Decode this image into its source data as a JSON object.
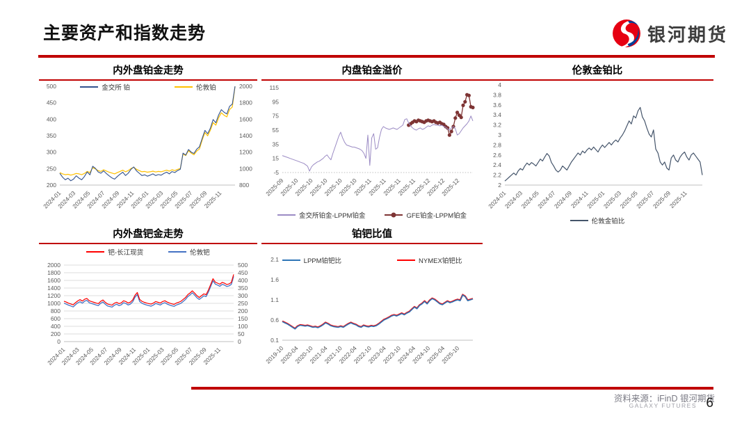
{
  "header": {
    "title": "主要资产和指数走势",
    "logo_text": "银河期货"
  },
  "footer": {
    "source": "资料来源：iFinD 银河期货",
    "source_en": "GALAXY FUTURES",
    "page_number": "6"
  },
  "colors": {
    "accent_red": "#C00000",
    "tick_label": "#595959",
    "axis_line": "#BFBFBF",
    "grid_line": "#DCDCDC",
    "sge_pt_navy": "#33538E",
    "london_pt_yellow": "#FFC000",
    "gfe_premium_maroon": "#7E3434",
    "sge_premium_purple": "#9B8BC4",
    "gold_pt_ratio_slate": "#44546A",
    "london_pd_blue": "#4472C4",
    "pd_spot_red": "#FF0000",
    "nymex_ratio_red": "#FF0000",
    "lppm_ratio_blue": "#2E75B6"
  },
  "chart_data": [
    {
      "type": "line",
      "title": "内外盘铂金走势",
      "x_labels": [
        "2024-01",
        "2024-03",
        "2024-05",
        "2024-07",
        "2024-09",
        "2024-11",
        "2025-01",
        "2025-03",
        "2025-05",
        "2025-07",
        "2025-09",
        "2025-11"
      ],
      "left_ticks": [
        "500",
        "450",
        "400",
        "350",
        "300",
        "250",
        "200"
      ],
      "left_range": [
        200,
        500
      ],
      "right_ticks": [
        "2000",
        "1800",
        "1600",
        "1400",
        "1200",
        "1000",
        "800"
      ],
      "right_range": [
        800,
        2000
      ],
      "grid": false,
      "legend_position": "inside-top",
      "series": [
        {
          "name": "伦敦铂",
          "color": "#FFC000",
          "axis": "right",
          "width": 1.2,
          "marker": false,
          "values": [
            952,
            936,
            926,
            931,
            921,
            929,
            941,
            936,
            926,
            941,
            966,
            951,
            1012,
            996,
            976,
            966,
            986,
            971,
            956,
            946,
            936,
            951,
            966,
            981,
            961,
            976,
            1001,
            1016,
            991,
            976,
            961,
            966,
            956,
            961,
            969,
            959,
            966,
            961,
            971,
            981,
            969,
            986,
            976,
            991,
            1001,
            1178,
            1158,
            1218,
            1188,
            1168,
            1213,
            1238,
            1348,
            1438,
            1398,
            1468,
            1558,
            1528,
            1618,
            1678,
            1648,
            1628,
            1718,
            1748,
            1998
          ]
        },
        {
          "name": "金交所 铂",
          "color": "#33538E",
          "axis": "left",
          "width": 1.1,
          "marker": false,
          "values": [
            236,
            224,
            216,
            221,
            213,
            218,
            228,
            221,
            216,
            226,
            240,
            231,
            257,
            251,
            240,
            236,
            243,
            235,
            228,
            222,
            218,
            226,
            233,
            239,
            229,
            236,
            248,
            255,
            243,
            236,
            229,
            231,
            227,
            230,
            234,
            229,
            232,
            230,
            235,
            239,
            234,
            241,
            238,
            244,
            248,
            297,
            291,
            308,
            300,
            296,
            309,
            316,
            342,
            366,
            356,
            373,
            399,
            389,
            413,
            429,
            421,
            416,
            439,
            446,
            500
          ]
        }
      ]
    },
    {
      "type": "line",
      "title": "内盘铂金溢价",
      "x_labels": [
        "2025-09",
        "2025-10",
        "2025-10",
        "2025-10",
        "2025-10",
        "2025-10",
        "2025-11",
        "2025-11",
        "2025-11",
        "2025-11",
        "2025-12",
        "2025-12",
        "2025-12"
      ],
      "left_ticks": [
        "115",
        "95",
        "75",
        "55",
        "35",
        "15",
        "-5"
      ],
      "left_range": [
        -5,
        115
      ],
      "grid": false,
      "legend_position": "bottom",
      "series": [
        {
          "name": "GFE铂金-LPPM铂金",
          "color": "#7E3434",
          "axis": "left",
          "width": 1.3,
          "marker": true,
          "values": [
            null,
            null,
            null,
            null,
            null,
            null,
            null,
            null,
            null,
            null,
            null,
            null,
            null,
            null,
            null,
            null,
            null,
            null,
            null,
            null,
            null,
            null,
            null,
            null,
            null,
            null,
            null,
            null,
            null,
            null,
            null,
            null,
            null,
            null,
            null,
            null,
            null,
            null,
            null,
            null,
            null,
            null,
            null,
            null,
            null,
            null,
            null,
            null,
            null,
            null,
            null,
            null,
            null,
            null,
            null,
            null,
            null,
            null,
            null,
            null,
            null,
            null,
            null,
            null,
            null,
            62,
            64,
            66,
            68,
            67,
            69,
            68,
            67,
            66,
            68,
            69,
            68,
            67,
            68,
            66,
            65,
            66,
            64,
            63,
            60,
            58,
            48,
            53,
            60,
            72,
            80,
            76,
            73,
            90,
            95,
            105,
            104,
            88,
            87
          ]
        },
        {
          "name": "金交所铂金-LPPM铂金",
          "color": "#9B8BC4",
          "axis": "left",
          "width": 1.0,
          "marker": false,
          "values": [
            19,
            18,
            17,
            16,
            15,
            14,
            13,
            12,
            11,
            10,
            9,
            8,
            6,
            4,
            -3,
            3,
            6,
            8,
            10,
            11,
            13,
            15,
            18,
            20,
            16,
            13,
            22,
            30,
            38,
            46,
            52,
            44,
            38,
            34,
            33,
            32,
            31,
            31,
            30,
            29,
            28,
            26,
            22,
            15,
            48,
            5,
            44,
            50,
            28,
            30,
            45,
            56,
            60,
            58,
            57,
            56,
            57,
            58,
            57,
            56,
            58,
            60,
            62,
            70,
            71,
            65,
            61,
            58,
            56,
            55,
            57,
            58,
            56,
            57,
            59,
            61,
            60,
            62,
            63,
            62,
            62,
            61,
            62,
            60,
            59,
            57,
            55,
            58,
            60,
            57,
            48,
            50,
            54,
            58,
            61,
            64,
            68,
            75,
            68
          ]
        }
      ]
    },
    {
      "type": "line",
      "title": "伦敦金铂比",
      "x_labels": [
        "2024-01",
        "2024-03",
        "2024-05",
        "2024-07",
        "2024-09",
        "2024-11",
        "2025-01",
        "2025-03",
        "2025-05",
        "2025-07",
        "2025-09",
        "2025-11"
      ],
      "left_ticks": [
        "4",
        "3.8",
        "3.6",
        "3.4",
        "3.2",
        "3",
        "2.8",
        "2.6",
        "2.4",
        "2.2",
        "2"
      ],
      "left_range": [
        2,
        4
      ],
      "grid": false,
      "legend_position": "bottom",
      "series": [
        {
          "name": "伦敦金铂比",
          "color": "#44546A",
          "axis": "left",
          "width": 1.2,
          "marker": false,
          "values": [
            2.08,
            2.12,
            2.16,
            2.2,
            2.24,
            2.2,
            2.28,
            2.33,
            2.3,
            2.38,
            2.44,
            2.4,
            2.45,
            2.42,
            2.38,
            2.45,
            2.52,
            2.48,
            2.56,
            2.63,
            2.58,
            2.45,
            2.38,
            2.3,
            2.26,
            2.3,
            2.38,
            2.34,
            2.3,
            2.38,
            2.46,
            2.52,
            2.58,
            2.64,
            2.6,
            2.68,
            2.64,
            2.7,
            2.74,
            2.7,
            2.76,
            2.71,
            2.66,
            2.74,
            2.8,
            2.75,
            2.8,
            2.85,
            2.8,
            2.86,
            2.9,
            2.86,
            2.94,
            3.0,
            3.08,
            3.18,
            3.28,
            3.22,
            3.38,
            3.34,
            3.48,
            3.55,
            3.36,
            3.28,
            3.14,
            3.02,
            2.96,
            3.1,
            2.72,
            2.64,
            2.46,
            2.4,
            2.46,
            2.34,
            2.3,
            2.54,
            2.6,
            2.5,
            2.46,
            2.56,
            2.62,
            2.66,
            2.56,
            2.5,
            2.6,
            2.64,
            2.58,
            2.52,
            2.46,
            2.2
          ]
        }
      ]
    },
    {
      "type": "line",
      "title": "内外盘钯金走势",
      "x_labels": [
        "2024-01",
        "2024-03",
        "2024-05",
        "2024-07",
        "2024-09",
        "2024-11",
        "2025-01",
        "2025-03",
        "2025-05",
        "2025-07",
        "2025-09",
        "2025-11"
      ],
      "left_ticks": [
        "2000",
        "1800",
        "1600",
        "1400",
        "1200",
        "1000",
        "800",
        "600",
        "400",
        "200",
        "0"
      ],
      "left_range": [
        0,
        2000
      ],
      "right_ticks": [
        "500",
        "450",
        "400",
        "350",
        "300",
        "250",
        "200",
        "150",
        "100",
        "50",
        "0"
      ],
      "right_range": [
        0,
        500
      ],
      "grid": true,
      "legend_position": "top",
      "series": [
        {
          "name": "伦敦钯",
          "color": "#4472C4",
          "axis": "left",
          "width": 1.3,
          "marker": false,
          "values": [
            1005,
            978,
            952,
            930,
            906,
            962,
            1012,
            1042,
            1006,
            1056,
            1076,
            1016,
            996,
            976,
            956,
            941,
            1001,
            1036,
            976,
            931,
            916,
            901,
            951,
            976,
            941,
            961,
            1016,
            996,
            956,
            981,
            1041,
            1161,
            1231,
            1051,
            1001,
            976,
            956,
            941,
            926,
            956,
            996,
            976,
            956,
            996,
            1016,
            981,
            956,
            936,
            921,
            956,
            976,
            1001,
            1051,
            1101,
            1176,
            1221,
            1276,
            1216,
            1146,
            1101,
            1146,
            1196,
            1176,
            1296,
            1441,
            1591,
            1501,
            1476,
            1446,
            1496,
            1476,
            1441,
            1456,
            1496,
            1705
          ]
        },
        {
          "name": "钯-长江现货",
          "color": "#FF0000",
          "axis": "right",
          "width": 1.2,
          "marker": false,
          "values": [
            264,
            258,
            251,
            246,
            240,
            254,
            266,
            274,
            265,
            277,
            282,
            267,
            262,
            257,
            252,
            248,
            263,
            272,
            257,
            246,
            242,
            238,
            251,
            257,
            248,
            253,
            267,
            262,
            252,
            258,
            273,
            303,
            321,
            276,
            263,
            257,
            252,
            248,
            245,
            252,
            262,
            257,
            252,
            262,
            267,
            258,
            252,
            247,
            243,
            252,
            257,
            263,
            276,
            288,
            307,
            318,
            332,
            317,
            300,
            288,
            300,
            312,
            307,
            337,
            373,
            411,
            388,
            382,
            375,
            387,
            382,
            373,
            377,
            387,
            439
          ]
        }
      ]
    },
    {
      "type": "line",
      "title": "铂钯比值",
      "x_labels": [
        "2019-10",
        "2020-04",
        "2020-10",
        "2021-04",
        "2021-10",
        "2022-04",
        "2022-10",
        "2023-04",
        "2023-10",
        "2024-04",
        "2024-10",
        "2025-04",
        "2025-10"
      ],
      "left_ticks": [
        "2.1",
        "1.6",
        "1.1",
        "0.6",
        "0.1"
      ],
      "left_range": [
        0.1,
        2.1
      ],
      "grid": false,
      "legend_position": "top",
      "series": [
        {
          "name": "NYMEX铂钯比",
          "color": "#FF0000",
          "axis": "left",
          "width": 2.2,
          "marker": false,
          "values": [
            0.57,
            0.54,
            0.51,
            0.47,
            0.43,
            0.39,
            0.45,
            0.48,
            0.47,
            0.46,
            0.47,
            0.45,
            0.43,
            0.44,
            0.42,
            0.45,
            0.49,
            0.54,
            0.51,
            0.47,
            0.45,
            0.44,
            0.43,
            0.45,
            0.43,
            0.47,
            0.51,
            0.54,
            0.51,
            0.49,
            0.45,
            0.43,
            0.47,
            0.45,
            0.44,
            0.46,
            0.45,
            0.47,
            0.51,
            0.56,
            0.61,
            0.64,
            0.67,
            0.71,
            0.73,
            0.71,
            0.74,
            0.77,
            0.74,
            0.78,
            0.81,
            0.87,
            0.93,
            0.89,
            0.97,
            1.01,
            1.07,
            1.01,
            1.09,
            1.14,
            1.11,
            1.06,
            1.01,
            0.99,
            1.03,
            1.07,
            1.04,
            1.06,
            1.09,
            1.11,
            1.09,
            1.23,
            1.19,
            1.09,
            1.11,
            1.13
          ]
        },
        {
          "name": "LPPM铂钯比",
          "color": "#2E75B6",
          "axis": "left",
          "width": 1.6,
          "marker": false,
          "values": [
            0.56,
            0.53,
            0.5,
            0.46,
            0.42,
            0.38,
            0.44,
            0.47,
            0.46,
            0.45,
            0.46,
            0.44,
            0.42,
            0.43,
            0.41,
            0.44,
            0.48,
            0.53,
            0.5,
            0.46,
            0.44,
            0.43,
            0.42,
            0.44,
            0.42,
            0.46,
            0.5,
            0.53,
            0.5,
            0.48,
            0.44,
            0.42,
            0.46,
            0.44,
            0.43,
            0.45,
            0.44,
            0.46,
            0.5,
            0.55,
            0.6,
            0.63,
            0.66,
            0.7,
            0.72,
            0.7,
            0.73,
            0.76,
            0.73,
            0.77,
            0.8,
            0.86,
            0.92,
            0.88,
            0.96,
            1.0,
            1.06,
            1.0,
            1.08,
            1.13,
            1.1,
            1.05,
            1.0,
            0.98,
            1.02,
            1.06,
            1.03,
            1.05,
            1.08,
            1.1,
            1.08,
            1.22,
            1.18,
            1.08,
            1.1,
            1.12
          ]
        }
      ]
    }
  ]
}
